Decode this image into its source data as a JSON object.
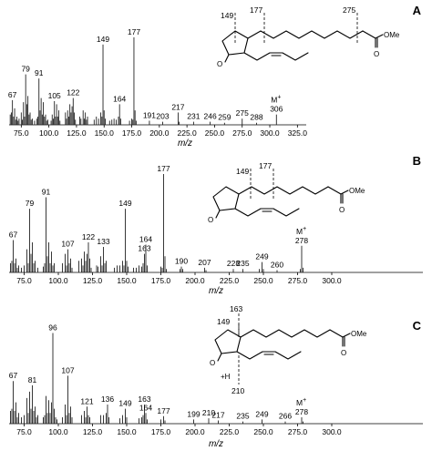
{
  "chart_data": [
    {
      "type": "bar",
      "panel_label": "A",
      "xlabel": "m/z",
      "xlim": [
        64,
        334
      ],
      "ylim": [
        0,
        100
      ],
      "xticks": [
        "75.0",
        "100.0",
        "125.0",
        "150.0",
        "175.0",
        "200.0",
        "225.0",
        "250.0",
        "275.0",
        "300.0",
        "325.0"
      ],
      "xtick_values": [
        75,
        100,
        125,
        150,
        175,
        200,
        225,
        250,
        275,
        300,
        325
      ],
      "molecular_ion_label": "M",
      "molecular_ion_sup": "+",
      "molecular_ion_mz": 306,
      "peaks": [
        {
          "mz": 65,
          "y": 10
        },
        {
          "mz": 66,
          "y": 12
        },
        {
          "mz": 67,
          "y": 24,
          "label": "67"
        },
        {
          "mz": 68,
          "y": 8
        },
        {
          "mz": 69,
          "y": 16
        },
        {
          "mz": 70,
          "y": 5
        },
        {
          "mz": 71,
          "y": 8
        },
        {
          "mz": 72,
          "y": 4
        },
        {
          "mz": 73,
          "y": 6
        },
        {
          "mz": 75,
          "y": 12
        },
        {
          "mz": 76,
          "y": 5
        },
        {
          "mz": 77,
          "y": 22
        },
        {
          "mz": 78,
          "y": 8
        },
        {
          "mz": 79,
          "y": 49,
          "label": "79"
        },
        {
          "mz": 80,
          "y": 20
        },
        {
          "mz": 81,
          "y": 28
        },
        {
          "mz": 82,
          "y": 10
        },
        {
          "mz": 83,
          "y": 12
        },
        {
          "mz": 84,
          "y": 5
        },
        {
          "mz": 85,
          "y": 6
        },
        {
          "mz": 87,
          "y": 4
        },
        {
          "mz": 89,
          "y": 6
        },
        {
          "mz": 90,
          "y": 8
        },
        {
          "mz": 91,
          "y": 45,
          "label": "91"
        },
        {
          "mz": 92,
          "y": 14
        },
        {
          "mz": 93,
          "y": 26
        },
        {
          "mz": 94,
          "y": 10
        },
        {
          "mz": 95,
          "y": 22
        },
        {
          "mz": 96,
          "y": 8
        },
        {
          "mz": 97,
          "y": 10
        },
        {
          "mz": 98,
          "y": 4
        },
        {
          "mz": 99,
          "y": 5
        },
        {
          "mz": 102,
          "y": 4
        },
        {
          "mz": 103,
          "y": 10
        },
        {
          "mz": 104,
          "y": 6
        },
        {
          "mz": 105,
          "y": 23,
          "label": "105"
        },
        {
          "mz": 106,
          "y": 8
        },
        {
          "mz": 107,
          "y": 20
        },
        {
          "mz": 108,
          "y": 8
        },
        {
          "mz": 109,
          "y": 14
        },
        {
          "mz": 110,
          "y": 4
        },
        {
          "mz": 115,
          "y": 12
        },
        {
          "mz": 116,
          "y": 6
        },
        {
          "mz": 117,
          "y": 14
        },
        {
          "mz": 118,
          "y": 8
        },
        {
          "mz": 119,
          "y": 20
        },
        {
          "mz": 120,
          "y": 12
        },
        {
          "mz": 121,
          "y": 18
        },
        {
          "mz": 122,
          "y": 26,
          "label": "122"
        },
        {
          "mz": 123,
          "y": 12
        },
        {
          "mz": 124,
          "y": 5
        },
        {
          "mz": 128,
          "y": 8
        },
        {
          "mz": 129,
          "y": 6
        },
        {
          "mz": 131,
          "y": 14
        },
        {
          "mz": 132,
          "y": 6
        },
        {
          "mz": 133,
          "y": 12
        },
        {
          "mz": 134,
          "y": 5
        },
        {
          "mz": 135,
          "y": 8
        },
        {
          "mz": 141,
          "y": 5
        },
        {
          "mz": 143,
          "y": 8
        },
        {
          "mz": 145,
          "y": 6
        },
        {
          "mz": 147,
          "y": 12
        },
        {
          "mz": 148,
          "y": 8
        },
        {
          "mz": 149,
          "y": 78,
          "label": "149"
        },
        {
          "mz": 150,
          "y": 14
        },
        {
          "mz": 151,
          "y": 6
        },
        {
          "mz": 155,
          "y": 4
        },
        {
          "mz": 157,
          "y": 5
        },
        {
          "mz": 159,
          "y": 6
        },
        {
          "mz": 161,
          "y": 5
        },
        {
          "mz": 163,
          "y": 8
        },
        {
          "mz": 164,
          "y": 20,
          "label": "164"
        },
        {
          "mz": 165,
          "y": 6
        },
        {
          "mz": 173,
          "y": 4
        },
        {
          "mz": 175,
          "y": 6
        },
        {
          "mz": 176,
          "y": 5
        },
        {
          "mz": 177,
          "y": 85,
          "label": "177"
        },
        {
          "mz": 178,
          "y": 14
        },
        {
          "mz": 179,
          "y": 4
        },
        {
          "mz": 191,
          "y": 4,
          "label": "191"
        },
        {
          "mz": 203,
          "y": 3,
          "label": "203"
        },
        {
          "mz": 217,
          "y": 12,
          "label": "217"
        },
        {
          "mz": 218,
          "y": 3
        },
        {
          "mz": 231,
          "y": 3,
          "label": "231"
        },
        {
          "mz": 246,
          "y": 3,
          "label": "246"
        },
        {
          "mz": 259,
          "y": 2,
          "label": "259"
        },
        {
          "mz": 275,
          "y": 6,
          "label": "275"
        },
        {
          "mz": 288,
          "y": 2,
          "label": "288"
        },
        {
          "mz": 306,
          "y": 10,
          "label": "306"
        }
      ],
      "structure": {
        "substituent": "OMe",
        "fragments": [
          "149",
          "177",
          "275"
        ],
        "hydrogen_label": ""
      }
    },
    {
      "type": "bar",
      "panel_label": "B",
      "xlabel": "m/z",
      "xlim": [
        64,
        309
      ],
      "ylim": [
        0,
        100
      ],
      "xticks": [
        "75.0",
        "100.0",
        "125.0",
        "150.0",
        "175.0",
        "200.0",
        "225.0",
        "250.0",
        "275.0",
        "300.0"
      ],
      "xtick_values": [
        75,
        100,
        125,
        150,
        175,
        200,
        225,
        250,
        275,
        300
      ],
      "molecular_ion_label": "M",
      "molecular_ion_sup": "+",
      "molecular_ion_mz": 278,
      "peaks": [
        {
          "mz": 65,
          "y": 8
        },
        {
          "mz": 66,
          "y": 10
        },
        {
          "mz": 67,
          "y": 28,
          "label": "67"
        },
        {
          "mz": 68,
          "y": 8
        },
        {
          "mz": 69,
          "y": 12
        },
        {
          "mz": 70,
          "y": 4
        },
        {
          "mz": 71,
          "y": 6
        },
        {
          "mz": 73,
          "y": 4
        },
        {
          "mz": 75,
          "y": 6
        },
        {
          "mz": 77,
          "y": 20
        },
        {
          "mz": 78,
          "y": 8
        },
        {
          "mz": 79,
          "y": 55,
          "label": "79"
        },
        {
          "mz": 80,
          "y": 16
        },
        {
          "mz": 81,
          "y": 26
        },
        {
          "mz": 82,
          "y": 8
        },
        {
          "mz": 83,
          "y": 10
        },
        {
          "mz": 85,
          "y": 4
        },
        {
          "mz": 89,
          "y": 5
        },
        {
          "mz": 90,
          "y": 8
        },
        {
          "mz": 91,
          "y": 65,
          "label": "91"
        },
        {
          "mz": 92,
          "y": 14
        },
        {
          "mz": 93,
          "y": 26
        },
        {
          "mz": 94,
          "y": 8
        },
        {
          "mz": 95,
          "y": 18
        },
        {
          "mz": 96,
          "y": 6
        },
        {
          "mz": 97,
          "y": 8
        },
        {
          "mz": 103,
          "y": 8
        },
        {
          "mz": 105,
          "y": 16
        },
        {
          "mz": 106,
          "y": 6
        },
        {
          "mz": 107,
          "y": 20,
          "label": "107"
        },
        {
          "mz": 108,
          "y": 8
        },
        {
          "mz": 109,
          "y": 12
        },
        {
          "mz": 110,
          "y": 4
        },
        {
          "mz": 115,
          "y": 10
        },
        {
          "mz": 117,
          "y": 12
        },
        {
          "mz": 118,
          "y": 6
        },
        {
          "mz": 119,
          "y": 18
        },
        {
          "mz": 120,
          "y": 10
        },
        {
          "mz": 121,
          "y": 16
        },
        {
          "mz": 122,
          "y": 26,
          "label": "122"
        },
        {
          "mz": 123,
          "y": 12
        },
        {
          "mz": 124,
          "y": 4
        },
        {
          "mz": 128,
          "y": 6
        },
        {
          "mz": 129,
          "y": 5
        },
        {
          "mz": 131,
          "y": 14
        },
        {
          "mz": 132,
          "y": 6
        },
        {
          "mz": 133,
          "y": 22,
          "label": "133"
        },
        {
          "mz": 134,
          "y": 8
        },
        {
          "mz": 135,
          "y": 10
        },
        {
          "mz": 141,
          "y": 4
        },
        {
          "mz": 143,
          "y": 6
        },
        {
          "mz": 145,
          "y": 6
        },
        {
          "mz": 147,
          "y": 10
        },
        {
          "mz": 148,
          "y": 6
        },
        {
          "mz": 149,
          "y": 55,
          "label": "149"
        },
        {
          "mz": 150,
          "y": 10
        },
        {
          "mz": 151,
          "y": 5
        },
        {
          "mz": 155,
          "y": 4
        },
        {
          "mz": 157,
          "y": 4
        },
        {
          "mz": 159,
          "y": 6
        },
        {
          "mz": 161,
          "y": 5
        },
        {
          "mz": 162,
          "y": 8
        },
        {
          "mz": 163,
          "y": 16,
          "label": "163"
        },
        {
          "mz": 164,
          "y": 24,
          "label": "164"
        },
        {
          "mz": 165,
          "y": 6
        },
        {
          "mz": 175,
          "y": 5
        },
        {
          "mz": 176,
          "y": 4
        },
        {
          "mz": 177,
          "y": 85,
          "label": "177"
        },
        {
          "mz": 178,
          "y": 14
        },
        {
          "mz": 179,
          "y": 3
        },
        {
          "mz": 189,
          "y": 3
        },
        {
          "mz": 190,
          "y": 5,
          "label": "190"
        },
        {
          "mz": 191,
          "y": 3
        },
        {
          "mz": 207,
          "y": 4,
          "label": "207"
        },
        {
          "mz": 208,
          "y": 2
        },
        {
          "mz": 228,
          "y": 3,
          "label": "228"
        },
        {
          "mz": 235,
          "y": 3,
          "label": "235"
        },
        {
          "mz": 247,
          "y": 3
        },
        {
          "mz": 249,
          "y": 9,
          "label": "249"
        },
        {
          "mz": 250,
          "y": 3
        },
        {
          "mz": 260,
          "y": 2,
          "label": "260"
        },
        {
          "mz": 277,
          "y": 3
        },
        {
          "mz": 278,
          "y": 23,
          "label": "278"
        },
        {
          "mz": 279,
          "y": 4
        }
      ],
      "structure": {
        "substituent": "OMe",
        "fragments": [
          "149",
          "177"
        ],
        "hydrogen_label": ""
      }
    },
    {
      "type": "bar",
      "panel_label": "C",
      "xlabel": "m/z",
      "xlim": [
        64,
        309
      ],
      "ylim": [
        0,
        100
      ],
      "xticks": [
        "75.0",
        "100.0",
        "125.0",
        "150.0",
        "175.0",
        "200.0",
        "225.0",
        "250.0",
        "275.0",
        "300.0"
      ],
      "xtick_values": [
        75,
        100,
        125,
        150,
        175,
        200,
        225,
        250,
        275,
        300
      ],
      "molecular_ion_label": "M",
      "molecular_ion_sup": "+",
      "molecular_ion_mz": 278,
      "peaks": [
        {
          "mz": 65,
          "y": 12
        },
        {
          "mz": 66,
          "y": 14
        },
        {
          "mz": 67,
          "y": 40,
          "label": "67"
        },
        {
          "mz": 68,
          "y": 12
        },
        {
          "mz": 69,
          "y": 20
        },
        {
          "mz": 70,
          "y": 6
        },
        {
          "mz": 71,
          "y": 10
        },
        {
          "mz": 73,
          "y": 6
        },
        {
          "mz": 75,
          "y": 8
        },
        {
          "mz": 77,
          "y": 24
        },
        {
          "mz": 78,
          "y": 10
        },
        {
          "mz": 79,
          "y": 30
        },
        {
          "mz": 80,
          "y": 14
        },
        {
          "mz": 81,
          "y": 36,
          "label": "81"
        },
        {
          "mz": 82,
          "y": 12
        },
        {
          "mz": 83,
          "y": 16
        },
        {
          "mz": 84,
          "y": 6
        },
        {
          "mz": 85,
          "y": 8
        },
        {
          "mz": 89,
          "y": 6
        },
        {
          "mz": 90,
          "y": 8
        },
        {
          "mz": 91,
          "y": 26
        },
        {
          "mz": 92,
          "y": 10
        },
        {
          "mz": 93,
          "y": 22
        },
        {
          "mz": 94,
          "y": 10
        },
        {
          "mz": 95,
          "y": 20
        },
        {
          "mz": 96,
          "y": 85,
          "label": "96"
        },
        {
          "mz": 97,
          "y": 14
        },
        {
          "mz": 98,
          "y": 6
        },
        {
          "mz": 99,
          "y": 4
        },
        {
          "mz": 103,
          "y": 6
        },
        {
          "mz": 105,
          "y": 18
        },
        {
          "mz": 106,
          "y": 8
        },
        {
          "mz": 107,
          "y": 45,
          "label": "107"
        },
        {
          "mz": 108,
          "y": 10
        },
        {
          "mz": 109,
          "y": 16
        },
        {
          "mz": 110,
          "y": 6
        },
        {
          "mz": 117,
          "y": 8
        },
        {
          "mz": 119,
          "y": 12
        },
        {
          "mz": 120,
          "y": 6
        },
        {
          "mz": 121,
          "y": 16,
          "label": "121"
        },
        {
          "mz": 122,
          "y": 8
        },
        {
          "mz": 123,
          "y": 6
        },
        {
          "mz": 131,
          "y": 8
        },
        {
          "mz": 133,
          "y": 8
        },
        {
          "mz": 135,
          "y": 10
        },
        {
          "mz": 136,
          "y": 18,
          "label": "136"
        },
        {
          "mz": 137,
          "y": 6
        },
        {
          "mz": 145,
          "y": 5
        },
        {
          "mz": 147,
          "y": 8
        },
        {
          "mz": 149,
          "y": 14,
          "label": "149"
        },
        {
          "mz": 150,
          "y": 6
        },
        {
          "mz": 159,
          "y": 5
        },
        {
          "mz": 161,
          "y": 6
        },
        {
          "mz": 162,
          "y": 8
        },
        {
          "mz": 163,
          "y": 18,
          "label": "163"
        },
        {
          "mz": 164,
          "y": 10,
          "label": "164"
        },
        {
          "mz": 165,
          "y": 4
        },
        {
          "mz": 175,
          "y": 4
        },
        {
          "mz": 177,
          "y": 7,
          "label": "177"
        },
        {
          "mz": 178,
          "y": 3
        },
        {
          "mz": 199,
          "y": 4,
          "label": "199"
        },
        {
          "mz": 210,
          "y": 5,
          "label": "210"
        },
        {
          "mz": 217,
          "y": 3,
          "label": "217"
        },
        {
          "mz": 235,
          "y": 2,
          "label": "235"
        },
        {
          "mz": 249,
          "y": 4,
          "label": "249"
        },
        {
          "mz": 266,
          "y": 2,
          "label": "266"
        },
        {
          "mz": 278,
          "y": 6,
          "label": "278"
        },
        {
          "mz": 279,
          "y": 2
        }
      ],
      "structure": {
        "substituent": "OMe",
        "fragments": [
          "163",
          "149",
          "210"
        ],
        "hydrogen_label": "+H"
      }
    }
  ]
}
